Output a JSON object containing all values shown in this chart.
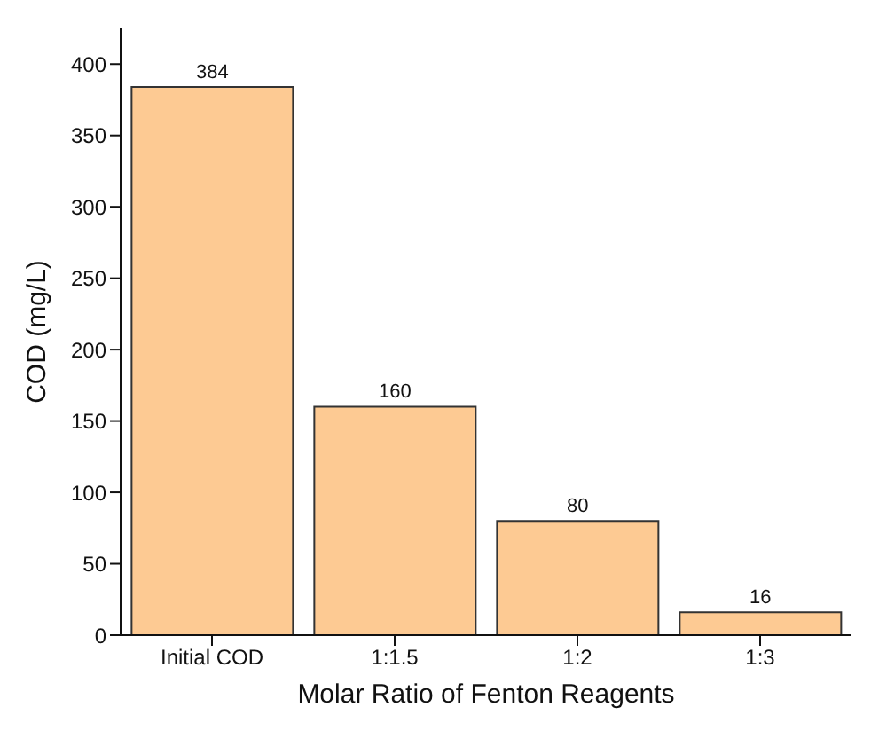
{
  "chart_data": {
    "type": "bar",
    "xlabel": "Molar Ratio of Fenton Reagents",
    "ylabel": "COD (mg/L)",
    "categories": [
      "Initial COD",
      "1:1.5",
      "1:2",
      "1:3"
    ],
    "values": [
      384,
      160,
      80,
      16
    ],
    "color": "#fdca93",
    "ylim": [
      0,
      425
    ],
    "yticks": [
      0,
      50,
      100,
      150,
      200,
      250,
      300,
      350,
      400
    ],
    "data_labels": true,
    "grid": false,
    "legend": false
  }
}
